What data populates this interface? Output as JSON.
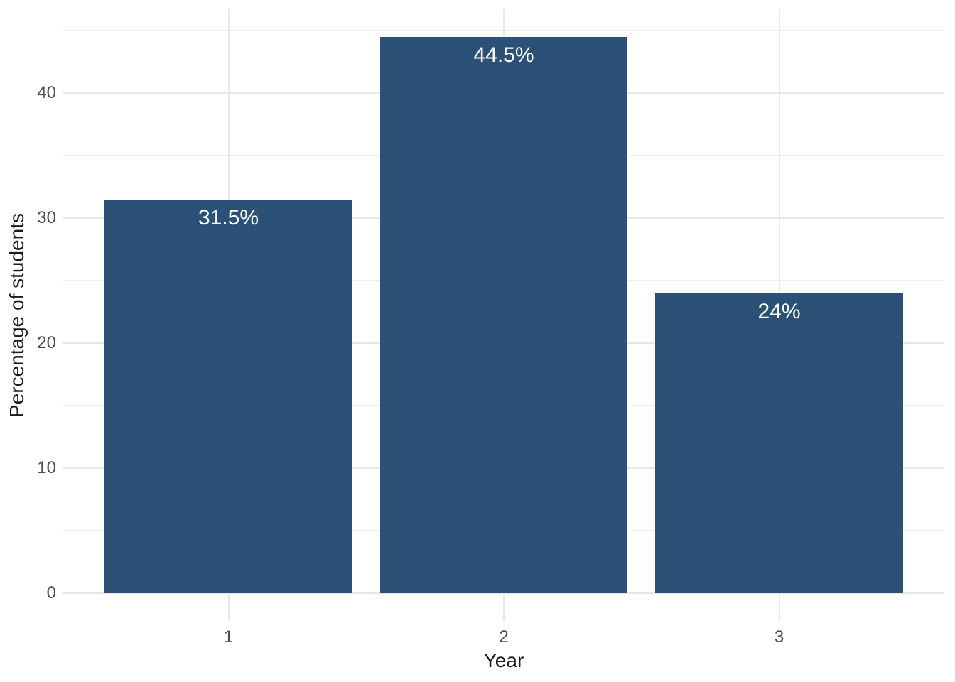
{
  "chart_data": {
    "type": "bar",
    "title": "",
    "categories": [
      "1",
      "2",
      "3"
    ],
    "values": [
      31.5,
      44.5,
      24
    ],
    "bar_labels": [
      "31.5%",
      "44.5%",
      "24%"
    ],
    "xlabel": "Year",
    "ylabel": "Percentage of students",
    "yticks": [
      0,
      10,
      20,
      30,
      40
    ],
    "yticks_minor": [
      5,
      15,
      25,
      35,
      45
    ],
    "ylim": [
      0,
      44.5
    ],
    "grid": true,
    "legend_position": "none",
    "colors": {
      "bar_fill": "#2C5177",
      "grid_major": "#E7E7E7",
      "grid_minor": "#EFEFEF",
      "tick_label": "#4D4D4D",
      "axis_title": "#1A1A1A",
      "bar_label_text": "#FFFFFF",
      "background": "#FFFFFF"
    }
  }
}
